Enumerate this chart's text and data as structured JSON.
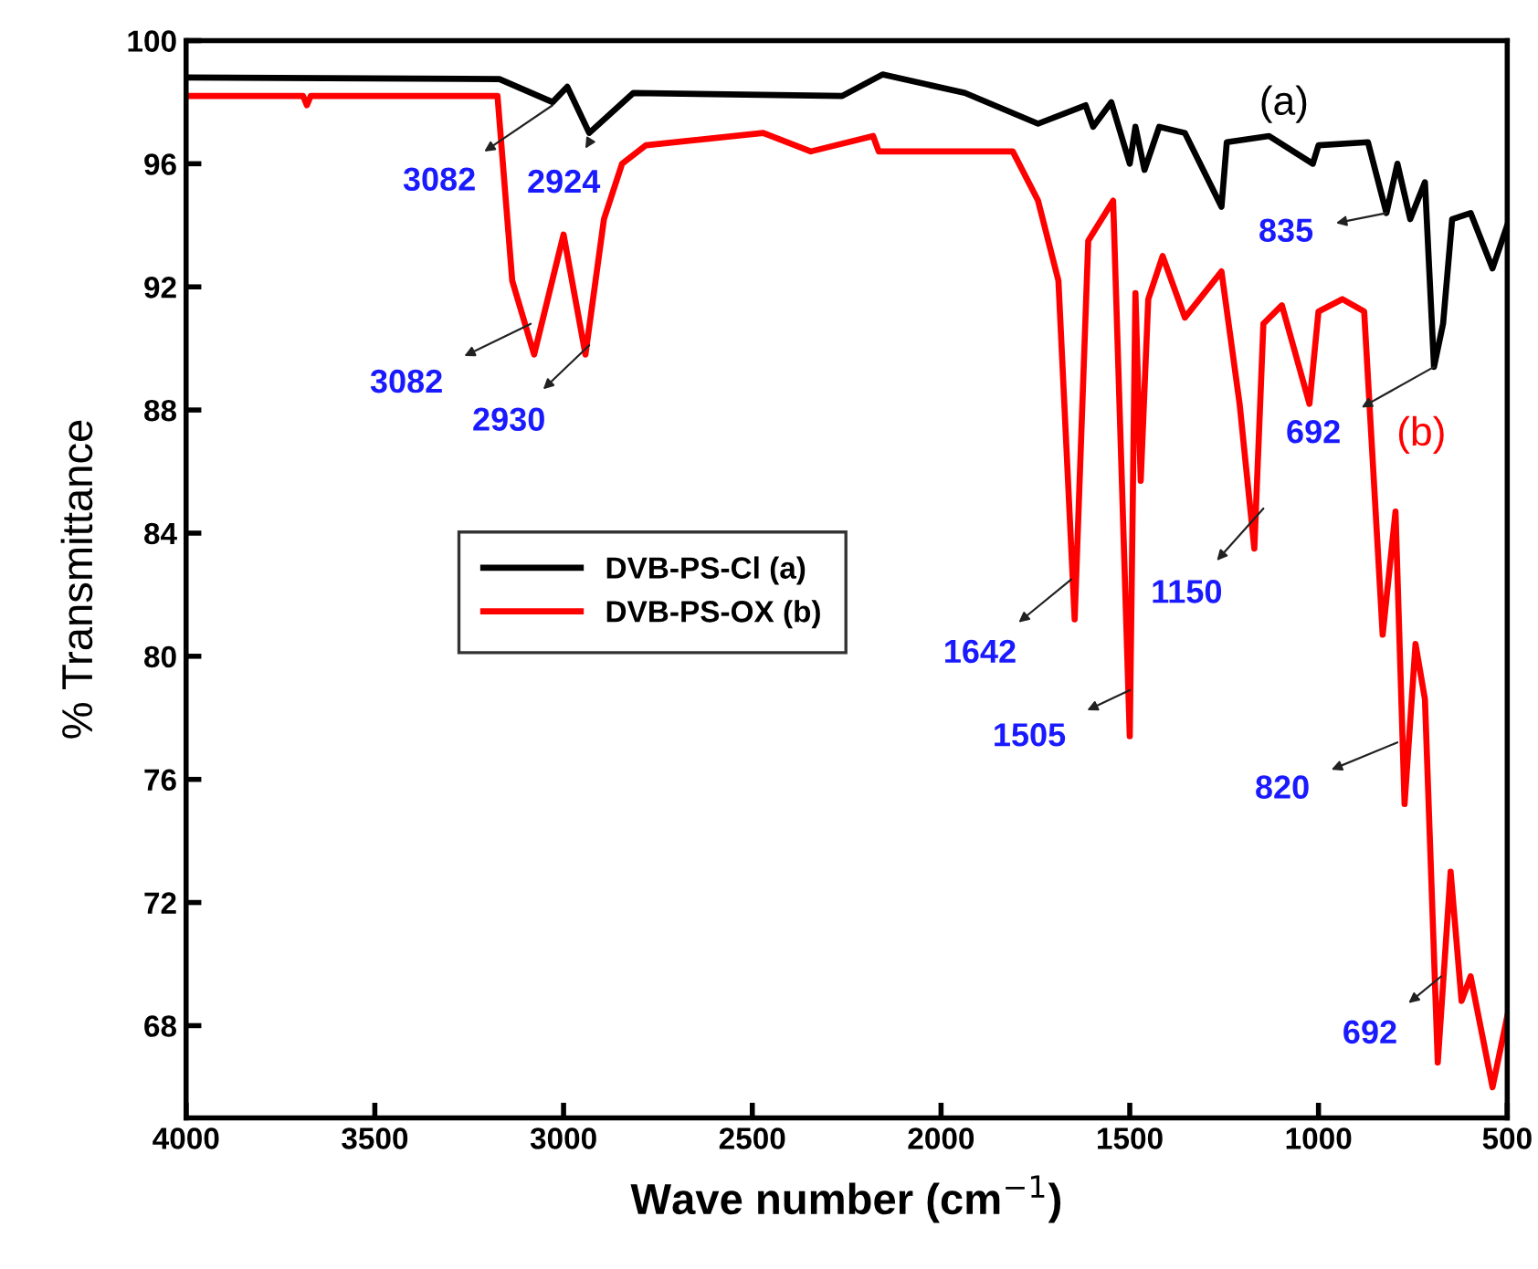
{
  "chart_data": {
    "type": "line",
    "xlabel": "Wave number (cm$^{−1}$)",
    "ylabel": "% Transmittance",
    "xlim": [
      4000,
      500
    ],
    "ylim": [
      65,
      100
    ],
    "xticks": [
      {
        "value": 4000,
        "label": "4000"
      },
      3500,
      3000,
      2500,
      2000,
      1500,
      1000,
      500
    ],
    "yticks": [
      68,
      72,
      76,
      80,
      84,
      88,
      92,
      96,
      100
    ],
    "grid": false,
    "legend": "center left",
    "series": [
      {
        "name": "DVB-PS-Cl (a)",
        "color": "#000000",
        "x": [
          4000,
          3170,
          3029,
          2990,
          2932,
          2815,
          2262,
          2155,
          1937,
          1743,
          1617,
          1597,
          1549,
          1500,
          1485,
          1461,
          1422,
          1354,
          1257,
          1243,
          1131,
          1015,
          1000,
          869,
          820,
          791,
          757,
          718,
          694,
          670,
          646,
          597,
          539,
          500
        ],
        "values": [
          98.8,
          98.75,
          98.0,
          98.5,
          97.0,
          98.3,
          98.2,
          98.9,
          98.3,
          97.3,
          97.9,
          97.2,
          98.0,
          96.0,
          97.2,
          95.8,
          97.2,
          97.0,
          94.6,
          96.7,
          96.9,
          96.0,
          96.6,
          96.7,
          94.4,
          96.0,
          94.2,
          95.4,
          89.4,
          90.8,
          94.2,
          94.4,
          92.6,
          94.0
        ]
      },
      {
        "name": "DVB-PS-OX (b)",
        "color": "#ff0000",
        "x": [
          4000,
          3690,
          3680,
          3670,
          3175,
          3136,
          3078,
          3000,
          2942,
          2893,
          2845,
          2782,
          2471,
          2345,
          2180,
          2165,
          1810,
          1743,
          1689,
          1646,
          1610,
          1544,
          1500,
          1485,
          1471,
          1451,
          1413,
          1354,
          1257,
          1209,
          1170,
          1146,
          1097,
          1024,
          1000,
          937,
          879,
          830,
          796,
          772,
          743,
          718,
          684,
          650,
          621,
          597,
          539,
          500
        ],
        "values": [
          98.2,
          98.2,
          97.9,
          98.2,
          98.2,
          92.2,
          89.8,
          93.7,
          89.8,
          94.2,
          96.0,
          96.6,
          97.0,
          96.4,
          96.9,
          96.4,
          96.4,
          94.8,
          92.2,
          81.2,
          93.5,
          94.8,
          77.4,
          91.8,
          85.7,
          91.6,
          93.0,
          91.0,
          92.5,
          88.2,
          83.5,
          90.8,
          91.4,
          88.2,
          91.2,
          91.6,
          91.2,
          80.7,
          84.7,
          75.2,
          80.4,
          78.6,
          66.8,
          73.0,
          68.8,
          69.6,
          66.0,
          68.3
        ]
      }
    ],
    "annotations": [
      {
        "text": "3082",
        "x": 3029,
        "y": 97.9
      },
      {
        "text": "2924",
        "x": 2932,
        "y": 96.7
      },
      {
        "text": "3082",
        "x": 3087,
        "y": 90.8
      },
      {
        "text": "2930",
        "x": 2932,
        "y": 90.1
      },
      {
        "text": "835",
        "x": 820,
        "y": 94.4
      },
      {
        "text": "692",
        "x": 694,
        "y": 89.4
      },
      {
        "text": "1642",
        "x": 1655,
        "y": 82.5
      },
      {
        "text": "1505",
        "x": 1500,
        "y": 78.9
      },
      {
        "text": "1150",
        "x": 1146,
        "y": 84.8
      },
      {
        "text": "820",
        "x": 791,
        "y": 77.2
      },
      {
        "text": "692",
        "x": 675,
        "y": 69.6
      },
      "(a)",
      "(b)"
    ]
  }
}
